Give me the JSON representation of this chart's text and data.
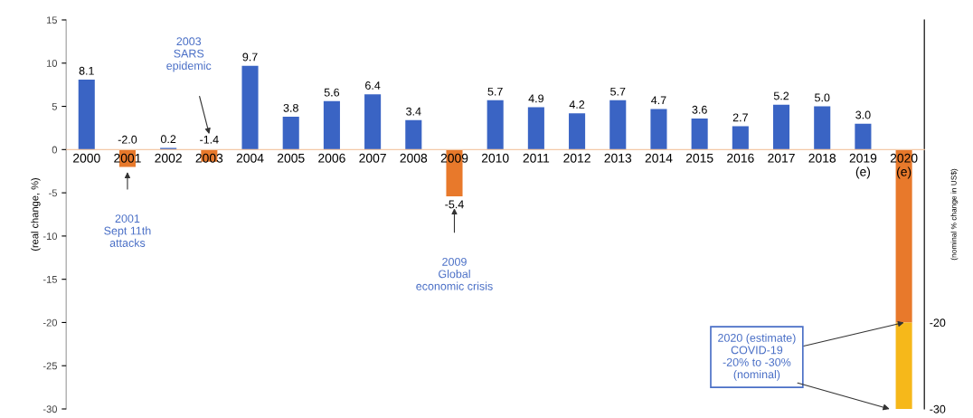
{
  "chart_data": {
    "type": "bar",
    "categories": [
      "2000",
      "2001",
      "2002",
      "2003",
      "2004",
      "2005",
      "2006",
      "2007",
      "2008",
      "2009",
      "2010",
      "2011",
      "2012",
      "2013",
      "2014",
      "2015",
      "2016",
      "2017",
      "2018",
      "2019\n(e)",
      "2020\n(e)"
    ],
    "series": [
      {
        "colors": [
          "#3a64c4",
          "#e8792b",
          "#3a64c4",
          "#e8792b",
          "#3a64c4",
          "#3a64c4",
          "#3a64c4",
          "#3a64c4",
          "#3a64c4",
          "#e8792b",
          "#3a64c4",
          "#3a64c4",
          "#3a64c4",
          "#3a64c4",
          "#3a64c4",
          "#3a64c4",
          "#3a64c4",
          "#3a64c4",
          "#3a64c4",
          "#3a64c4",
          null
        ],
        "values": [
          8.1,
          -2.0,
          0.2,
          -1.4,
          9.7,
          3.8,
          5.6,
          6.4,
          3.4,
          -5.4,
          5.7,
          4.9,
          4.2,
          5.7,
          4.7,
          3.6,
          2.7,
          5.2,
          5.0,
          3.0,
          null
        ],
        "value_labels": [
          "8.1",
          "-2.0",
          "0.2",
          "-1.4",
          "9.7",
          "3.8",
          "5.6",
          "6.4",
          "3.4",
          "-5.4",
          "5.7",
          "4.9",
          "4.2",
          "5.7",
          "4.7",
          "3.6",
          "2.7",
          "5.2",
          "5.0",
          "3.0",
          null
        ]
      },
      {
        "color": "#e8792b",
        "axis": "y2",
        "values": [
          null,
          null,
          null,
          null,
          null,
          null,
          null,
          null,
          null,
          null,
          null,
          null,
          null,
          null,
          null,
          null,
          null,
          null,
          null,
          null,
          -20
        ],
        "base": [
          null,
          null,
          null,
          null,
          null,
          null,
          null,
          null,
          null,
          null,
          null,
          null,
          null,
          null,
          null,
          null,
          null,
          null,
          null,
          null,
          0
        ]
      },
      {
        "color": "#f6b81a",
        "axis": "y2",
        "values": [
          null,
          null,
          null,
          null,
          null,
          null,
          null,
          null,
          null,
          null,
          null,
          null,
          null,
          null,
          null,
          null,
          null,
          null,
          null,
          null,
          -10
        ],
        "base": [
          null,
          null,
          null,
          null,
          null,
          null,
          null,
          null,
          null,
          null,
          null,
          null,
          null,
          null,
          null,
          null,
          null,
          null,
          null,
          null,
          -20
        ]
      }
    ],
    "ylabel": "(real change, %)",
    "y2label": "(nominal % change in US$)",
    "ylim": [
      -30,
      15
    ],
    "yticks": [
      -30,
      -25,
      -20,
      -15,
      -10,
      -5,
      0,
      5,
      10,
      15
    ],
    "y2lim": [
      -30,
      15
    ],
    "y2ticks": [
      -30,
      -20
    ],
    "grid": false,
    "legend": false,
    "annotations": [
      "2001\nSept 11th\nattacks",
      "2003\nSARS\nepidemic",
      "2009\nGlobal\neconomic crisis",
      {
        "text": "2020 (estimate)\nCOVID-19\n-20% to -30%\n(nominal)",
        "x": "2020\n(e)",
        "y": -20
      }
    ]
  }
}
